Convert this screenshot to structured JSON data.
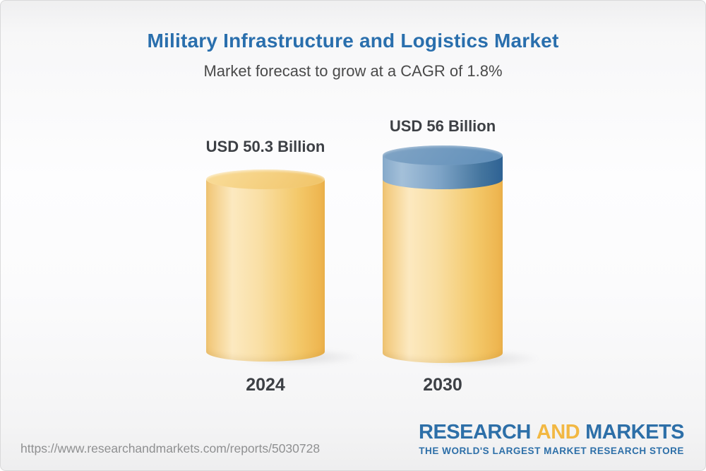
{
  "header": {
    "title": "Military Infrastructure and Logistics Market",
    "subtitle": "Market forecast to grow at a CAGR of 1.8%"
  },
  "chart_data": {
    "type": "bar",
    "title": "Military Infrastructure and Logistics Market",
    "subtitle": "Market forecast to grow at a CAGR of 1.8%",
    "cagr_percent": 1.8,
    "unit": "USD Billion",
    "categories": [
      "2024",
      "2030"
    ],
    "values": [
      50.3,
      56
    ],
    "data_labels": [
      "USD 50.3 Billion",
      "USD 56 Billion"
    ],
    "bar_style": "3d-cylinder",
    "growth_segment": "blue cap on 2030 bar represents growth above 2024 level",
    "legend": "none",
    "grid": "off",
    "axes": "none"
  },
  "bars": [
    {
      "category": "2024",
      "value": 50.3,
      "value_label": "USD 50.3 Billion"
    },
    {
      "category": "2030",
      "value": 56,
      "value_label": "USD 56 Billion"
    }
  ],
  "footer": {
    "url": "https://www.researchandmarkets.com/reports/5030728",
    "logo": {
      "word1": "RESEARCH",
      "word2": "AND",
      "word3": "MARKETS",
      "tagline": "THE WORLD'S LARGEST MARKET RESEARCH STORE"
    }
  },
  "colors": {
    "accent_blue": "#2a6fad",
    "subtitle_gray": "#4a4a4a",
    "label_dark": "#3d4045",
    "url_gray": "#8f9091",
    "logo_blue": "#2d6fa8",
    "logo_gold": "#f2b843",
    "gold_edge_l": "#f1c573",
    "gold_light": "#fce9c0",
    "gold_mid": "#f9dfa5",
    "gold_deep": "#f3c869",
    "gold_edge_r": "#edb24b",
    "gold_top_light": "#f8d993",
    "gold_top_dark": "#f1c66c",
    "blue_edge_l": "#85a9ca",
    "blue_light": "#a4c0d9",
    "blue_mid": "#7da3c6",
    "blue_deep": "#44759e",
    "blue_edge_r": "#2e6294",
    "blue_top_light": "#7da2c4",
    "blue_top_dark": "#6290ba"
  }
}
